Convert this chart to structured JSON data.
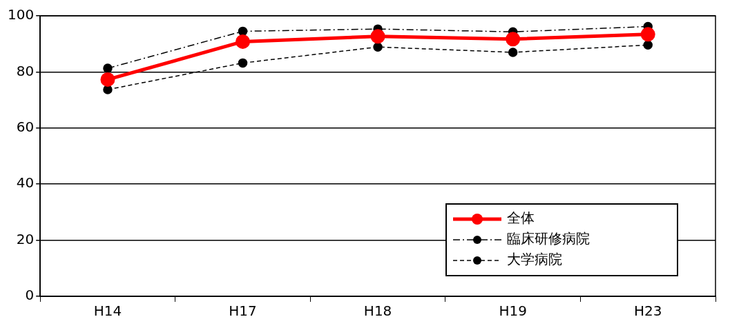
{
  "chart_data": {
    "type": "line",
    "categories": [
      "H14",
      "H17",
      "H18",
      "H19",
      "H23"
    ],
    "series": [
      {
        "name": "全体",
        "color": "#ff0000",
        "values": [
          77.3,
          90.8,
          92.7,
          91.7,
          93.4
        ],
        "line_style": "solid",
        "marker": "circle"
      },
      {
        "name": "臨床研修病院",
        "color": "#000000",
        "values": [
          81.3,
          94.5,
          95.3,
          94.3,
          96.2
        ],
        "line_style": "dashdot",
        "marker": "circle"
      },
      {
        "name": "大学病院",
        "color": "#000000",
        "values": [
          73.7,
          83.2,
          88.9,
          87.0,
          89.6
        ],
        "line_style": "dashed",
        "marker": "circle"
      }
    ],
    "ylim": [
      0,
      100
    ],
    "yticks": [
      0,
      20,
      40,
      60,
      80,
      100
    ],
    "grid": "y",
    "legend": "bottom right"
  }
}
